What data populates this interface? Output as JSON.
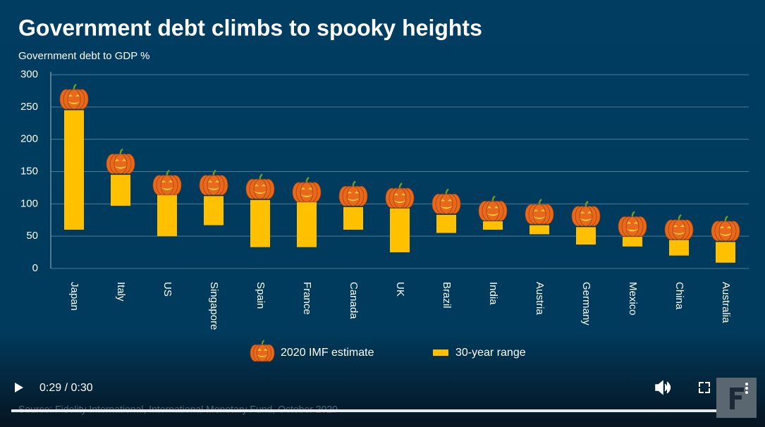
{
  "chart_data": {
    "type": "range",
    "title": "Government debt climbs to spooky heights",
    "subtitle": "Government debt to GDP %",
    "source": "Source: Fidelity International, International Monetary Fund, October 2020",
    "categories": [
      "Japan",
      "Italy",
      "US",
      "Singapore",
      "Spain",
      "France",
      "Canada",
      "UK",
      "Brazil",
      "India",
      "Austria",
      "Germany",
      "Mexico",
      "China",
      "Australia"
    ],
    "series": [
      {
        "name": "2020 IMF estimate",
        "color": "#e8691c",
        "values": [
          262,
          162,
          129,
          129,
          123,
          118,
          112,
          109,
          100,
          89,
          84,
          81,
          65,
          60,
          58
        ]
      },
      {
        "name": "30-year range",
        "color": "#ffc000",
        "low": [
          60,
          97,
          50,
          67,
          33,
          33,
          60,
          25,
          55,
          60,
          53,
          37,
          34,
          20,
          9
        ],
        "high": [
          245,
          145,
          116,
          112,
          106,
          103,
          95,
          93,
          83,
          73,
          67,
          64,
          49,
          44,
          41
        ]
      }
    ],
    "ylim": [
      0,
      300
    ],
    "yticks": [
      0,
      50,
      100,
      150,
      200,
      250,
      300
    ],
    "grid": true
  },
  "player": {
    "time": "0:29 / 0:30"
  }
}
